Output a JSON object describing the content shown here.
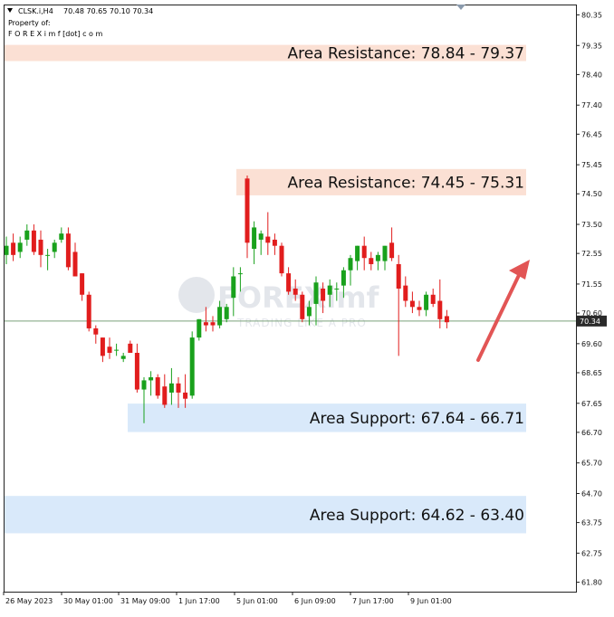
{
  "header": {
    "symbol": "CLSK.i,H4",
    "ohlc": "70.48 70.65 70.10 70.34",
    "property_label": "Property of:",
    "owner": "F O R E X i m f [dot] c o m"
  },
  "watermark": {
    "brand_letters": "FOREX",
    "brand_suffix": "imf",
    "tagline": "TRADING LIKE A PRO"
  },
  "colors": {
    "bull": "#19a11c",
    "bear": "#e11d1d",
    "resistance_zone": "#fbe0d4",
    "support_zone": "#d9e9fa",
    "arrow": "#e25555",
    "price_line": "#7aa07a",
    "price_tag": "#2a2a2a"
  },
  "current_price": "70.34",
  "chart_data": {
    "type": "candlestick",
    "y_axis": {
      "range": [
        61.49,
        80.66
      ],
      "ticks": [
        "80.35",
        "79.35",
        "78.40",
        "77.40",
        "76.45",
        "75.45",
        "74.50",
        "73.50",
        "72.55",
        "71.55",
        "70.60",
        "69.60",
        "68.65",
        "67.65",
        "66.70",
        "65.70",
        "64.70",
        "63.75",
        "62.75",
        "61.80"
      ]
    },
    "x_axis": {
      "labels": [
        "26 May 2023",
        "30 May 01:00",
        "31 May 09:00",
        "1 Jun 17:00",
        "5 Jun 01:00",
        "6 Jun 09:00",
        "7 Jun 17:00",
        "9 Jun 01:00"
      ]
    },
    "zones": [
      {
        "kind": "resistance",
        "label": "Area Resistance: 78.84 - 79.37",
        "low": 78.84,
        "high": 79.37
      },
      {
        "kind": "resistance",
        "label": "Area Resistance: 74.45 - 75.31",
        "low": 74.45,
        "high": 75.31
      },
      {
        "kind": "support",
        "label": "Area Support: 67.64 - 66.71",
        "low": 66.71,
        "high": 67.64
      },
      {
        "kind": "support",
        "label": "Area Support: 64.62 - 63.40",
        "low": 63.4,
        "high": 64.62
      }
    ],
    "candles": [
      {
        "o": 72.5,
        "h": 73.1,
        "l": 72.2,
        "c": 72.8
      },
      {
        "o": 72.9,
        "h": 73.2,
        "l": 72.3,
        "c": 72.5
      },
      {
        "o": 72.6,
        "h": 73.1,
        "l": 72.4,
        "c": 72.9
      },
      {
        "o": 73.0,
        "h": 73.5,
        "l": 72.8,
        "c": 73.3
      },
      {
        "o": 73.3,
        "h": 73.5,
        "l": 72.5,
        "c": 72.6
      },
      {
        "o": 73.0,
        "h": 73.3,
        "l": 72.1,
        "c": 72.5
      },
      {
        "o": 72.5,
        "h": 72.7,
        "l": 72.0,
        "c": 72.5
      },
      {
        "o": 72.6,
        "h": 73.0,
        "l": 72.4,
        "c": 72.9
      },
      {
        "o": 73.0,
        "h": 73.4,
        "l": 72.9,
        "c": 73.2
      },
      {
        "o": 73.2,
        "h": 73.4,
        "l": 72.0,
        "c": 72.1
      },
      {
        "o": 72.6,
        "h": 72.9,
        "l": 71.8,
        "c": 71.8
      },
      {
        "o": 71.9,
        "h": 71.9,
        "l": 71.0,
        "c": 71.2
      },
      {
        "o": 71.2,
        "h": 71.3,
        "l": 70.0,
        "c": 70.1
      },
      {
        "o": 70.1,
        "h": 70.2,
        "l": 69.6,
        "c": 69.9
      },
      {
        "o": 69.8,
        "h": 69.8,
        "l": 69.0,
        "c": 69.2
      },
      {
        "o": 69.5,
        "h": 69.8,
        "l": 69.1,
        "c": 69.3
      },
      {
        "o": 69.4,
        "h": 69.6,
        "l": 69.2,
        "c": 69.4
      },
      {
        "o": 69.1,
        "h": 69.3,
        "l": 69.0,
        "c": 69.2
      },
      {
        "o": 69.6,
        "h": 69.7,
        "l": 69.3,
        "c": 69.3
      },
      {
        "o": 69.3,
        "h": 69.6,
        "l": 68.0,
        "c": 68.1
      },
      {
        "o": 68.1,
        "h": 68.5,
        "l": 67.0,
        "c": 68.4
      },
      {
        "o": 68.4,
        "h": 68.7,
        "l": 67.9,
        "c": 68.5
      },
      {
        "o": 68.5,
        "h": 68.6,
        "l": 67.8,
        "c": 67.9
      },
      {
        "o": 68.2,
        "h": 68.6,
        "l": 67.5,
        "c": 67.6
      },
      {
        "o": 68.0,
        "h": 68.8,
        "l": 67.6,
        "c": 68.3
      },
      {
        "o": 68.3,
        "h": 68.5,
        "l": 67.5,
        "c": 68.0
      },
      {
        "o": 68.0,
        "h": 68.6,
        "l": 67.5,
        "c": 67.8
      },
      {
        "o": 67.9,
        "h": 70.0,
        "l": 67.8,
        "c": 69.8
      },
      {
        "o": 69.8,
        "h": 70.4,
        "l": 69.7,
        "c": 70.4
      },
      {
        "o": 70.3,
        "h": 70.8,
        "l": 70.0,
        "c": 70.2
      },
      {
        "o": 70.3,
        "h": 70.5,
        "l": 70.0,
        "c": 70.2
      },
      {
        "o": 70.2,
        "h": 71.0,
        "l": 70.1,
        "c": 70.8
      },
      {
        "o": 70.4,
        "h": 70.9,
        "l": 70.3,
        "c": 70.8
      },
      {
        "o": 71.1,
        "h": 72.1,
        "l": 70.5,
        "c": 71.8
      },
      {
        "o": 71.9,
        "h": 72.1,
        "l": 71.3,
        "c": 71.9
      },
      {
        "o": 75.0,
        "h": 75.1,
        "l": 72.4,
        "c": 72.9
      },
      {
        "o": 72.7,
        "h": 73.6,
        "l": 72.2,
        "c": 73.4
      },
      {
        "o": 73.0,
        "h": 73.3,
        "l": 72.5,
        "c": 73.2
      },
      {
        "o": 73.1,
        "h": 73.9,
        "l": 72.5,
        "c": 72.9
      },
      {
        "o": 73.0,
        "h": 73.2,
        "l": 72.5,
        "c": 72.8
      },
      {
        "o": 72.8,
        "h": 72.9,
        "l": 71.8,
        "c": 71.9
      },
      {
        "o": 71.9,
        "h": 72.1,
        "l": 71.2,
        "c": 71.3
      },
      {
        "o": 71.4,
        "h": 71.7,
        "l": 71.0,
        "c": 71.2
      },
      {
        "o": 71.2,
        "h": 71.3,
        "l": 70.3,
        "c": 70.4
      },
      {
        "o": 70.5,
        "h": 71.0,
        "l": 70.2,
        "c": 70.8
      },
      {
        "o": 70.9,
        "h": 71.8,
        "l": 70.2,
        "c": 71.6
      },
      {
        "o": 71.4,
        "h": 71.6,
        "l": 70.6,
        "c": 71.0
      },
      {
        "o": 71.2,
        "h": 71.7,
        "l": 70.8,
        "c": 71.5
      },
      {
        "o": 71.4,
        "h": 71.6,
        "l": 71.0,
        "c": 71.4
      },
      {
        "o": 71.5,
        "h": 72.1,
        "l": 71.1,
        "c": 72.0
      },
      {
        "o": 72.0,
        "h": 72.5,
        "l": 71.5,
        "c": 72.4
      },
      {
        "o": 72.3,
        "h": 72.8,
        "l": 72.0,
        "c": 72.8
      },
      {
        "o": 72.8,
        "h": 73.1,
        "l": 72.0,
        "c": 72.4
      },
      {
        "o": 72.4,
        "h": 72.6,
        "l": 72.0,
        "c": 72.2
      },
      {
        "o": 72.3,
        "h": 72.6,
        "l": 72.0,
        "c": 72.5
      },
      {
        "o": 72.3,
        "h": 72.8,
        "l": 72.0,
        "c": 72.8
      },
      {
        "o": 72.9,
        "h": 73.4,
        "l": 72.3,
        "c": 72.4
      },
      {
        "o": 72.2,
        "h": 72.5,
        "l": 69.2,
        "c": 71.4
      },
      {
        "o": 71.5,
        "h": 71.8,
        "l": 70.8,
        "c": 71.0
      },
      {
        "o": 71.0,
        "h": 71.3,
        "l": 70.6,
        "c": 70.8
      },
      {
        "o": 70.8,
        "h": 71.0,
        "l": 70.5,
        "c": 70.7
      },
      {
        "o": 70.7,
        "h": 71.3,
        "l": 70.5,
        "c": 71.2
      },
      {
        "o": 71.2,
        "h": 71.4,
        "l": 70.8,
        "c": 70.9
      },
      {
        "o": 71.0,
        "h": 71.7,
        "l": 70.1,
        "c": 70.4
      },
      {
        "o": 70.5,
        "h": 70.7,
        "l": 70.1,
        "c": 70.3
      }
    ]
  }
}
